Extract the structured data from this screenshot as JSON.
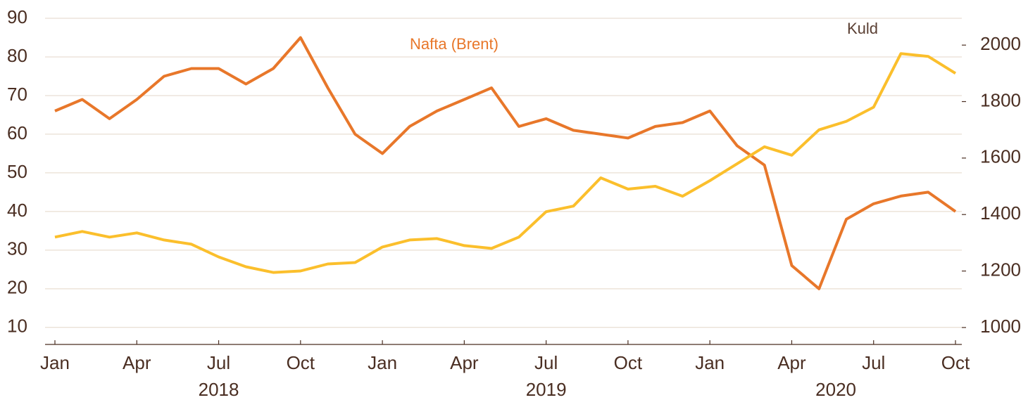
{
  "chart_data": {
    "type": "line",
    "x": [
      "2018-01",
      "2018-02",
      "2018-03",
      "2018-04",
      "2018-05",
      "2018-06",
      "2018-07",
      "2018-08",
      "2018-09",
      "2018-10",
      "2018-11",
      "2018-12",
      "2019-01",
      "2019-02",
      "2019-03",
      "2019-04",
      "2019-05",
      "2019-06",
      "2019-07",
      "2019-08",
      "2019-09",
      "2019-10",
      "2019-11",
      "2019-12",
      "2020-01",
      "2020-02",
      "2020-03",
      "2020-04",
      "2020-05",
      "2020-06",
      "2020-07",
      "2020-08",
      "2020-09",
      "2020-10"
    ],
    "xlim": [
      "2018-01",
      "2020-10"
    ],
    "xticks": [
      {
        "value": "2018-01",
        "label": "Jan"
      },
      {
        "value": "2018-04",
        "label": "Apr"
      },
      {
        "value": "2018-07",
        "label": "Jul"
      },
      {
        "value": "2018-10",
        "label": "Oct"
      },
      {
        "value": "2019-01",
        "label": "Jan"
      },
      {
        "value": "2019-04",
        "label": "Apr"
      },
      {
        "value": "2019-07",
        "label": "Jul"
      },
      {
        "value": "2019-10",
        "label": "Oct"
      },
      {
        "value": "2020-01",
        "label": "Jan"
      },
      {
        "value": "2020-04",
        "label": "Apr"
      },
      {
        "value": "2020-07",
        "label": "Jul"
      },
      {
        "value": "2020-10",
        "label": "Oct"
      }
    ],
    "year_labels": [
      "2018",
      "2019",
      "2020"
    ],
    "ylim": [
      5.6,
      90
    ],
    "yticks": [
      10,
      20,
      30,
      40,
      50,
      60,
      70,
      80,
      90
    ],
    "y2lim": [
      940,
      2095
    ],
    "y2ticks": [
      1000,
      1200,
      1400,
      1600,
      1800,
      2000
    ],
    "grid": true,
    "series": [
      {
        "name": "Nafta (Brent)",
        "color": "#e8772a",
        "values": [
          66,
          69,
          64,
          69,
          75,
          77,
          77,
          73,
          77,
          85,
          72,
          60,
          55,
          62,
          66,
          69,
          72,
          62,
          64,
          61,
          60,
          59,
          62,
          63,
          66,
          57,
          52,
          26,
          20,
          38,
          42,
          44,
          45,
          40
        ]
      },
      {
        "name": "Kuld",
        "color": "#fbbf2c",
        "axis": "y2",
        "values": [
          1320,
          1340,
          1320,
          1335,
          1310,
          1295,
          1250,
          1215,
          1195,
          1200,
          1225,
          1230,
          1285,
          1310,
          1315,
          1290,
          1280,
          1320,
          1410,
          1430,
          1530,
          1490,
          1500,
          1465,
          1520,
          1580,
          1640,
          1610,
          1700,
          1730,
          1780,
          1970,
          1960,
          1900
        ]
      }
    ]
  }
}
